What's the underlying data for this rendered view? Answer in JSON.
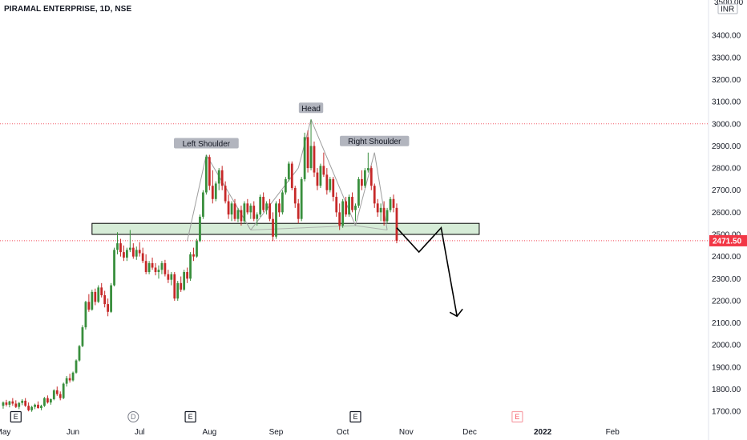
{
  "header": {
    "title": "PIRAMAL ENTERPRISE, 1D, NSE"
  },
  "price_axis": {
    "currency": "INR",
    "top_partial_label": "3500.00"
  },
  "chart_data": {
    "type": "candlestick",
    "symbol": "PIRAMAL ENTERPRISE",
    "interval": "1D",
    "exchange": "NSE",
    "ylim": [
      1650,
      3560
    ],
    "y_ticks": [
      1700,
      1800,
      1900,
      2000,
      2100,
      2200,
      2300,
      2400,
      2500,
      2600,
      2700,
      2800,
      2900,
      3000,
      3100,
      3200,
      3300,
      3400
    ],
    "x_labels": [
      {
        "label": "May",
        "day": 0
      },
      {
        "label": "Jun",
        "day": 22
      },
      {
        "label": "Jul",
        "day": 43
      },
      {
        "label": "Aug",
        "day": 65
      },
      {
        "label": "Sep",
        "day": 86
      },
      {
        "label": "Oct",
        "day": 107
      },
      {
        "label": "Nov",
        "day": 127
      },
      {
        "label": "Dec",
        "day": 147
      },
      {
        "label": "2022",
        "day": 170
      },
      {
        "label": "Feb",
        "day": 192
      }
    ],
    "x_range": [
      -1,
      222
    ],
    "last_price": "2471.50",
    "last_price_value": 2471.5,
    "colors": {
      "up": "#26a69a",
      "down": "#ef5350",
      "up_dark": "#388e3c",
      "down_dark": "#c62828",
      "zone_fill": "#c8e6c9",
      "zone_stroke": "#000000",
      "pattern_line": "#9e9e9e",
      "last_price": "#f23645",
      "red_dotted": "#f23645"
    },
    "candles": [
      [
        1725,
        1745,
        1712,
        1740
      ],
      [
        1740,
        1752,
        1722,
        1730
      ],
      [
        1730,
        1748,
        1718,
        1745
      ],
      [
        1745,
        1760,
        1725,
        1735
      ],
      [
        1735,
        1750,
        1715,
        1720
      ],
      [
        1720,
        1742,
        1710,
        1738
      ],
      [
        1738,
        1755,
        1728,
        1748
      ],
      [
        1748,
        1760,
        1720,
        1725
      ],
      [
        1725,
        1740,
        1700,
        1705
      ],
      [
        1705,
        1725,
        1698,
        1720
      ],
      [
        1720,
        1735,
        1710,
        1730
      ],
      [
        1730,
        1745,
        1712,
        1715
      ],
      [
        1715,
        1730,
        1705,
        1725
      ],
      [
        1725,
        1765,
        1720,
        1760
      ],
      [
        1760,
        1772,
        1735,
        1740
      ],
      [
        1740,
        1758,
        1730,
        1755
      ],
      [
        1755,
        1800,
        1750,
        1795
      ],
      [
        1795,
        1812,
        1770,
        1778
      ],
      [
        1778,
        1790,
        1750,
        1760
      ],
      [
        1760,
        1830,
        1755,
        1825
      ],
      [
        1825,
        1860,
        1812,
        1850
      ],
      [
        1850,
        1870,
        1830,
        1840
      ],
      [
        1840,
        1880,
        1835,
        1875
      ],
      [
        1875,
        1935,
        1870,
        1930
      ],
      [
        1930,
        2000,
        1925,
        1995
      ],
      [
        1995,
        2090,
        1990,
        2080
      ],
      [
        2080,
        2200,
        2070,
        2195
      ],
      [
        2195,
        2230,
        2150,
        2160
      ],
      [
        2160,
        2250,
        2155,
        2240
      ],
      [
        2240,
        2255,
        2180,
        2195
      ],
      [
        2195,
        2270,
        2190,
        2260
      ],
      [
        2260,
        2280,
        2215,
        2225
      ],
      [
        2225,
        2245,
        2170,
        2185
      ],
      [
        2185,
        2210,
        2130,
        2150
      ],
      [
        2150,
        2280,
        2145,
        2270
      ],
      [
        2270,
        2440,
        2265,
        2430
      ],
      [
        2430,
        2510,
        2410,
        2460
      ],
      [
        2460,
        2480,
        2400,
        2420
      ],
      [
        2420,
        2450,
        2380,
        2395
      ],
      [
        2395,
        2440,
        2380,
        2430
      ],
      [
        2430,
        2520,
        2420,
        2440
      ],
      [
        2440,
        2460,
        2390,
        2400
      ],
      [
        2400,
        2445,
        2385,
        2430
      ],
      [
        2430,
        2465,
        2400,
        2415
      ],
      [
        2415,
        2440,
        2370,
        2380
      ],
      [
        2380,
        2410,
        2320,
        2330
      ],
      [
        2330,
        2380,
        2320,
        2370
      ],
      [
        2370,
        2395,
        2340,
        2350
      ],
      [
        2350,
        2370,
        2315,
        2330
      ],
      [
        2330,
        2360,
        2300,
        2340
      ],
      [
        2340,
        2380,
        2320,
        2370
      ],
      [
        2370,
        2385,
        2310,
        2320
      ],
      [
        2320,
        2340,
        2280,
        2295
      ],
      [
        2295,
        2330,
        2270,
        2320
      ],
      [
        2320,
        2330,
        2200,
        2210
      ],
      [
        2210,
        2290,
        2200,
        2280
      ],
      [
        2280,
        2310,
        2240,
        2250
      ],
      [
        2250,
        2340,
        2245,
        2330
      ],
      [
        2330,
        2350,
        2280,
        2300
      ],
      [
        2300,
        2420,
        2290,
        2410
      ],
      [
        2410,
        2440,
        2380,
        2400
      ],
      [
        2400,
        2480,
        2395,
        2470
      ],
      [
        2470,
        2590,
        2465,
        2580
      ],
      [
        2580,
        2700,
        2570,
        2690
      ],
      [
        2690,
        2860,
        2680,
        2850
      ],
      [
        2850,
        2860,
        2700,
        2720
      ],
      [
        2720,
        2790,
        2640,
        2660
      ],
      [
        2660,
        2740,
        2650,
        2730
      ],
      [
        2730,
        2800,
        2700,
        2790
      ],
      [
        2790,
        2810,
        2700,
        2720
      ],
      [
        2720,
        2740,
        2640,
        2650
      ],
      [
        2650,
        2680,
        2570,
        2590
      ],
      [
        2590,
        2650,
        2560,
        2640
      ],
      [
        2640,
        2660,
        2560,
        2570
      ],
      [
        2570,
        2620,
        2555,
        2610
      ],
      [
        2610,
        2630,
        2540,
        2560
      ],
      [
        2560,
        2650,
        2550,
        2640
      ],
      [
        2640,
        2660,
        2590,
        2600
      ],
      [
        2600,
        2640,
        2570,
        2630
      ],
      [
        2630,
        2650,
        2560,
        2570
      ],
      [
        2570,
        2600,
        2540,
        2590
      ],
      [
        2590,
        2680,
        2580,
        2670
      ],
      [
        2670,
        2690,
        2600,
        2610
      ],
      [
        2610,
        2650,
        2590,
        2640
      ],
      [
        2640,
        2660,
        2560,
        2570
      ],
      [
        2570,
        2600,
        2470,
        2490
      ],
      [
        2490,
        2650,
        2480,
        2640
      ],
      [
        2640,
        2660,
        2580,
        2600
      ],
      [
        2600,
        2700,
        2590,
        2690
      ],
      [
        2690,
        2760,
        2680,
        2750
      ],
      [
        2750,
        2830,
        2740,
        2820
      ],
      [
        2820,
        2830,
        2700,
        2710
      ],
      [
        2710,
        2720,
        2620,
        2640
      ],
      [
        2640,
        2660,
        2550,
        2570
      ],
      [
        2570,
        2760,
        2560,
        2750
      ],
      [
        2750,
        2960,
        2740,
        2940
      ],
      [
        2940,
        2970,
        2780,
        2800
      ],
      [
        2800,
        3020,
        2790,
        2900
      ],
      [
        2900,
        2920,
        2760,
        2780
      ],
      [
        2780,
        2800,
        2700,
        2720
      ],
      [
        2720,
        2820,
        2710,
        2810
      ],
      [
        2810,
        2870,
        2760,
        2770
      ],
      [
        2770,
        2800,
        2680,
        2700
      ],
      [
        2700,
        2760,
        2690,
        2750
      ],
      [
        2750,
        2760,
        2650,
        2670
      ],
      [
        2670,
        2690,
        2580,
        2600
      ],
      [
        2600,
        2640,
        2520,
        2540
      ],
      [
        2540,
        2660,
        2530,
        2650
      ],
      [
        2650,
        2670,
        2580,
        2590
      ],
      [
        2590,
        2680,
        2580,
        2670
      ],
      [
        2670,
        2690,
        2600,
        2610
      ],
      [
        2610,
        2640,
        2560,
        2630
      ],
      [
        2630,
        2760,
        2620,
        2750
      ],
      [
        2750,
        2790,
        2700,
        2720
      ],
      [
        2720,
        2800,
        2710,
        2790
      ],
      [
        2790,
        2870,
        2780,
        2800
      ],
      [
        2800,
        2810,
        2700,
        2720
      ],
      [
        2720,
        2730,
        2620,
        2640
      ],
      [
        2640,
        2660,
        2580,
        2600
      ],
      [
        2600,
        2640,
        2560,
        2620
      ],
      [
        2620,
        2650,
        2540,
        2560
      ],
      [
        2560,
        2620,
        2550,
        2610
      ],
      [
        2610,
        2670,
        2600,
        2660
      ],
      [
        2660,
        2680,
        2600,
        2620
      ],
      [
        2620,
        2640,
        2460,
        2471.5
      ]
    ],
    "zone": {
      "start_day": 28,
      "end_day": 150,
      "low": 2500,
      "high": 2550
    },
    "resistance_line": {
      "price": 3000
    },
    "pattern": {
      "points": [
        {
          "day": 58,
          "price": 2470
        },
        {
          "day": 64,
          "price": 2860
        },
        {
          "day": 78,
          "price": 2520
        },
        {
          "day": 93,
          "price": 2800
        },
        {
          "day": 97,
          "price": 3020
        },
        {
          "day": 111,
          "price": 2540
        },
        {
          "day": 117,
          "price": 2870
        },
        {
          "day": 121,
          "price": 2520
        }
      ]
    },
    "projection": {
      "points": [
        {
          "day": 124,
          "price": 2530
        },
        {
          "day": 131,
          "price": 2420
        },
        {
          "day": 138,
          "price": 2530
        },
        {
          "day": 143,
          "price": 2130
        }
      ]
    },
    "annotations": [
      {
        "text": "Left Shoulder",
        "day": 64,
        "price": 2860
      },
      {
        "text": "Head",
        "day": 97,
        "price": 3020
      },
      {
        "text": "Right Shoulder",
        "day": 117,
        "price": 2870
      }
    ],
    "event_badges": [
      {
        "text": "E",
        "day": 4,
        "kind": "earnings"
      },
      {
        "text": "D",
        "day": 41,
        "kind": "dividend"
      },
      {
        "text": "E",
        "day": 59,
        "kind": "earnings"
      },
      {
        "text": "E",
        "day": 111,
        "kind": "earnings"
      },
      {
        "text": "E",
        "day": 162,
        "kind": "earnings-upcoming"
      }
    ]
  }
}
